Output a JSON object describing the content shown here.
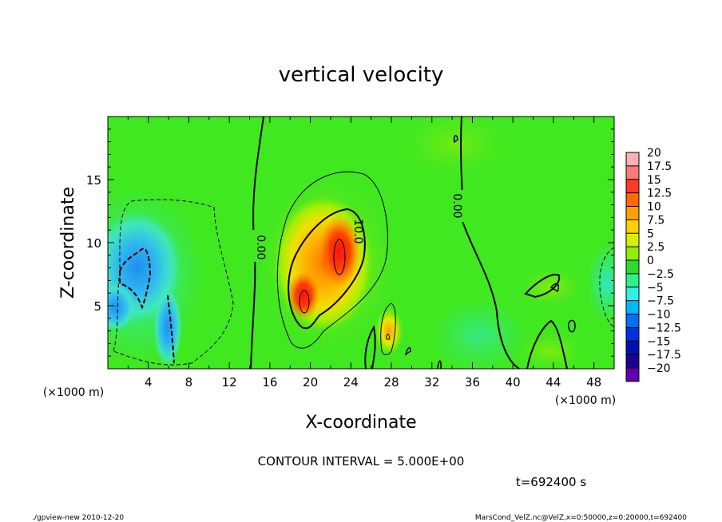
{
  "chart_data": {
    "type": "heatmap",
    "title": "vertical velocity",
    "xlabel": "X-coordinate",
    "ylabel": "Z-coordinate",
    "x_unit": "(×1000 m)",
    "z_unit": "(×1000 m)",
    "xlim": [
      0,
      50
    ],
    "ylim": [
      0,
      20
    ],
    "x_ticks": [
      "4",
      "8",
      "12",
      "16",
      "20",
      "24",
      "28",
      "32",
      "36",
      "40",
      "44",
      "48"
    ],
    "y_ticks": [
      "5",
      "10",
      "15"
    ],
    "colorbar_labels": [
      "20",
      "17.5",
      "15",
      "12.5",
      "10",
      "7.5",
      "5",
      "2.5",
      "0",
      "−2.5",
      "−5",
      "−7.5",
      "−10",
      "−12.5",
      "−15",
      "−17.5",
      "−20"
    ],
    "colorbar_colors": [
      "#ffb0b0",
      "#ff7878",
      "#ff3a28",
      "#ff6a00",
      "#ffa000",
      "#ffd000",
      "#d8f000",
      "#90f000",
      "#30d830",
      "#30f088",
      "#30f0e8",
      "#00b8f8",
      "#0070f8",
      "#0030e0",
      "#0010b0",
      "#200090",
      "#6000b0"
    ],
    "contour_interval": "CONTOUR INTERVAL = 5.000E+00",
    "contour_labels": [
      "0.00",
      "10.0",
      "0.00"
    ],
    "time_label": "t=692400 s",
    "features": [
      {
        "type": "updraft",
        "x": 20,
        "z": 8,
        "peak": 17.5
      },
      {
        "type": "updraft",
        "x": 23,
        "z": 9.5,
        "peak": 15
      },
      {
        "type": "updraft",
        "x": 27.5,
        "z": 2.5,
        "peak": 7.5
      },
      {
        "type": "downdraft",
        "x": 3,
        "z": 8.5,
        "peak": -10
      },
      {
        "type": "downdraft",
        "x": 6.5,
        "z": 3,
        "peak": -10
      }
    ]
  },
  "footer": {
    "left": "./gpview-new   2010-12-20",
    "right": "MarsCond_VelZ.nc@VelZ,x=0:50000,z=0:20000,t=692400"
  }
}
